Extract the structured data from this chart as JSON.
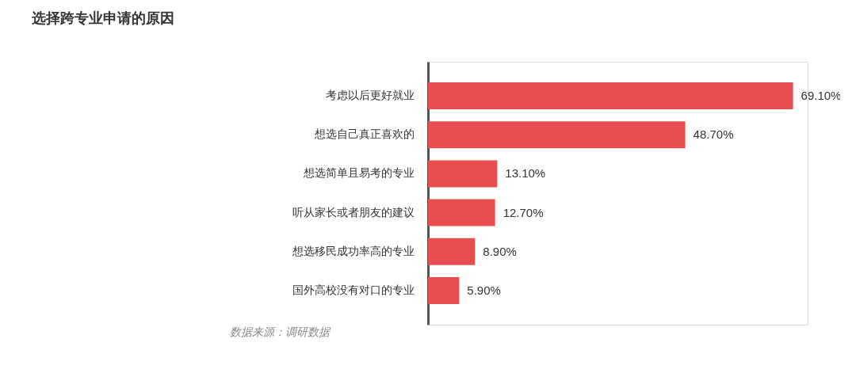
{
  "chart_data": {
    "type": "bar",
    "orientation": "horizontal",
    "title": "选择跨专业申请的原因",
    "categories": [
      "考虑以后更好就业",
      "想选自己真正喜欢的",
      "想选简单且易考的专业",
      "听从家长或者朋友的建议",
      "想选移民成功率高的专业",
      "国外高校没有对口的专业"
    ],
    "values": [
      69.1,
      48.7,
      13.1,
      12.7,
      8.9,
      5.9
    ],
    "value_labels": [
      "69.10%",
      "48.70%",
      "13.10%",
      "12.70%",
      "8.90%",
      "5.90%"
    ],
    "color": "#e84e4f",
    "grid": false,
    "tick_labels": "y",
    "annotations": [
      "数据来源：调研数据"
    ]
  }
}
